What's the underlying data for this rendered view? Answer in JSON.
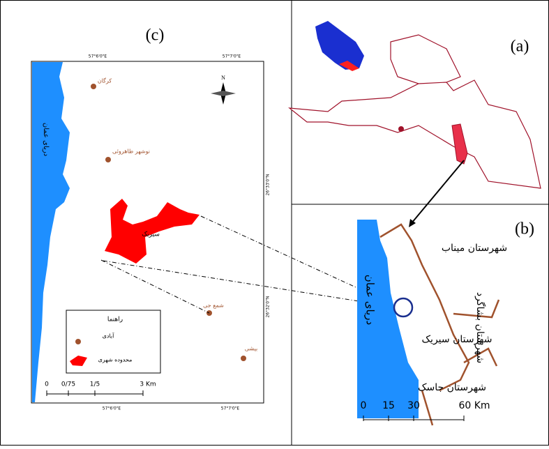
{
  "panels": {
    "c": {
      "label": "(c)",
      "north": "N",
      "coords": {
        "top": [
          "57°6'0\"E",
          "57°7'0\"E"
        ],
        "bottom": [
          "57°6'0\"E",
          "57°7'0\"E"
        ],
        "right": [
          "26°33'0\"N",
          "26°32'0\"N"
        ]
      },
      "sea": "دریای عمان",
      "places": [
        "کرگان",
        "نوشهر طاهروئی",
        "سیریک",
        "شمع جی",
        "بیشی"
      ],
      "legend": {
        "title": "راهنما",
        "items": [
          "آبادی",
          "محدوده شهری"
        ]
      },
      "scale": [
        "0",
        "0/75",
        "1/5",
        "3 Km"
      ]
    },
    "a": {
      "label": "(a)"
    },
    "b": {
      "label": "(b)",
      "sea": "دریای عمان",
      "counties": [
        "شهرستان میناب",
        "شهرستان سیریک",
        "شهرستان جاسک",
        "شهرستان بشاگرد"
      ],
      "scale": [
        "0",
        "15",
        "30",
        "60 Km"
      ]
    }
  }
}
